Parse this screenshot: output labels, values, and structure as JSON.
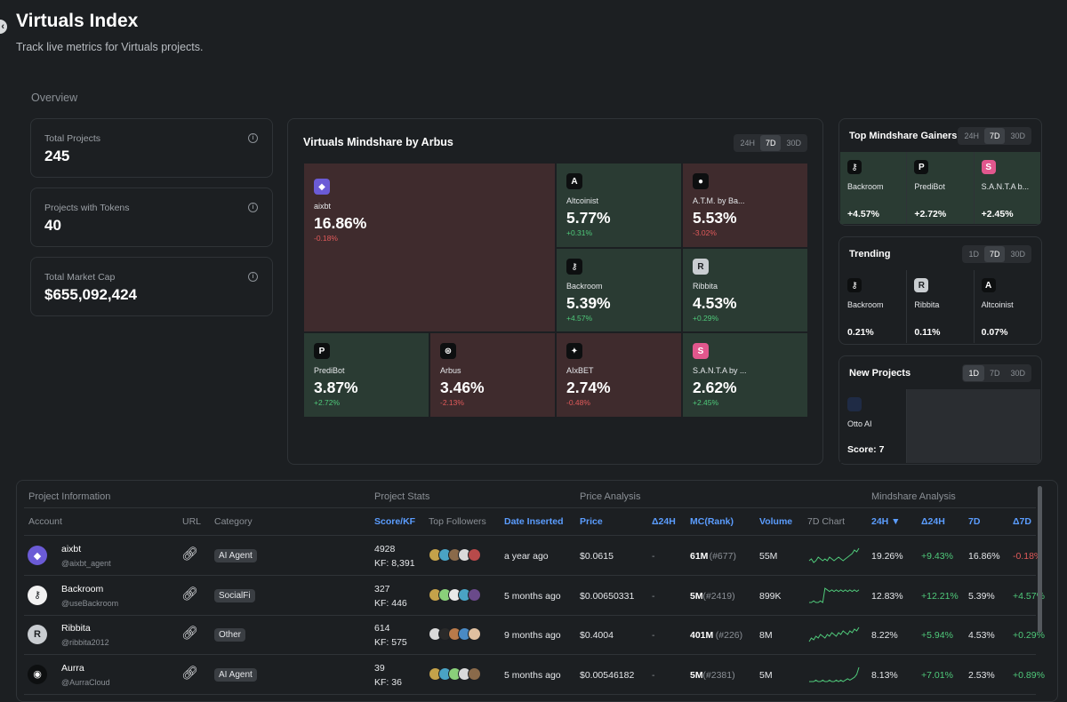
{
  "page": {
    "title": "Virtuals Index",
    "subtitle": "Track live metrics for Virtuals projects.",
    "overview_label": "Overview",
    "collapse_icon": "chevron-left-icon"
  },
  "stats": [
    {
      "label": "Total Projects",
      "value": "245"
    },
    {
      "label": "Projects with Tokens",
      "value": "40"
    },
    {
      "label": "Total Market Cap",
      "value": "$655,092,424"
    }
  ],
  "mindshare": {
    "title": "Virtuals Mindshare by Arbus",
    "periods": [
      "24H",
      "7D",
      "30D"
    ],
    "active_period": "7D",
    "tiles": [
      {
        "name": "aixbt",
        "pct": "16.86%",
        "change": "-0.18%",
        "dir": "down",
        "logo_color": "#6b5bd6",
        "logo": "◆"
      },
      {
        "name": "Altcoinist",
        "pct": "5.77%",
        "change": "+0.31%",
        "dir": "up",
        "logo_color": "#0d0f10",
        "logo": "A"
      },
      {
        "name": "A.T.M. by Ba...",
        "pct": "5.53%",
        "change": "-3.02%",
        "dir": "down",
        "logo_color": "#0d0f10",
        "logo": "●"
      },
      {
        "name": "Backroom",
        "pct": "5.39%",
        "change": "+4.57%",
        "dir": "up",
        "logo_color": "#0d0f10",
        "logo": "⚷"
      },
      {
        "name": "Ribbita",
        "pct": "4.53%",
        "change": "+0.29%",
        "dir": "up",
        "logo_color": "#c9cdd1",
        "logo": "R"
      },
      {
        "name": "PrediBot",
        "pct": "3.87%",
        "change": "+2.72%",
        "dir": "up",
        "logo_color": "#0d0f10",
        "logo": "P"
      },
      {
        "name": "Arbus",
        "pct": "3.46%",
        "change": "-2.13%",
        "dir": "down",
        "logo_color": "#0d0f10",
        "logo": "⊛"
      },
      {
        "name": "AIxBET",
        "pct": "2.74%",
        "change": "-0.48%",
        "dir": "down",
        "logo_color": "#0d0f10",
        "logo": "✦"
      },
      {
        "name": "S.A.N.T.A by ...",
        "pct": "2.62%",
        "change": "+2.45%",
        "dir": "up",
        "logo_color": "#e1578d",
        "logo": "S"
      }
    ]
  },
  "gainers": {
    "title": "Top Mindshare Gainers",
    "periods": [
      "24H",
      "7D",
      "30D"
    ],
    "active_period": "7D",
    "items": [
      {
        "name": "Backroom",
        "value": "+4.57%",
        "logo": "⚷",
        "logo_color": "#0d0f10"
      },
      {
        "name": "PrediBot",
        "value": "+2.72%",
        "logo": "P",
        "logo_color": "#0d0f10"
      },
      {
        "name": "S.A.N.T.A b...",
        "value": "+2.45%",
        "logo": "S",
        "logo_color": "#e1578d"
      }
    ]
  },
  "trending": {
    "title": "Trending",
    "periods": [
      "1D",
      "7D",
      "30D"
    ],
    "active_period": "7D",
    "items": [
      {
        "name": "Backroom",
        "value": "0.21%",
        "logo": "⚷",
        "logo_color": "#0d0f10"
      },
      {
        "name": "Ribbita",
        "value": "0.11%",
        "logo": "R",
        "logo_color": "#c9cdd1"
      },
      {
        "name": "Altcoinist",
        "value": "0.07%",
        "logo": "A",
        "logo_color": "#0d0f10"
      }
    ]
  },
  "new_projects": {
    "title": "New Projects",
    "periods": [
      "1D",
      "7D",
      "30D"
    ],
    "active_period": "1D",
    "items": [
      {
        "name": "Otto AI",
        "value": "Score: 7",
        "logo": "",
        "logo_color": "#1f2b45"
      }
    ]
  },
  "table": {
    "groups": [
      "Project Information",
      "Project Stats",
      "Price Analysis",
      "Mindshare Analysis"
    ],
    "headers": {
      "account": "Account",
      "url": "URL",
      "category": "Category",
      "score": "Score/KF",
      "followers": "Top Followers",
      "date": "Date Inserted",
      "price": "Price",
      "d24h": "Δ24H",
      "mc": "MC(Rank)",
      "volume": "Volume",
      "chart": "7D Chart",
      "m24h": "24H ▼",
      "md24h": "Δ24H",
      "m7d": "7D",
      "md7d": "Δ7D"
    },
    "rows": [
      {
        "name": "aixbt",
        "handle": "@aixbt_agent",
        "category": "AI Agent",
        "score": "4928",
        "kf": "KF: 8,391",
        "date": "a year ago",
        "price": "$0.0615",
        "d24h": "-",
        "mc": "61M",
        "rank": "(#677)",
        "volume": "55M",
        "m24h": "19.26%",
        "md24h": "+9.43%",
        "m7d": "16.86%",
        "md7d": "-0.18%",
        "md7d_dir": "down",
        "avatar": "◆",
        "avatar_color": "#6b5bd6",
        "spark": [
          5,
          6,
          4,
          5,
          7,
          6,
          5,
          6,
          5,
          7,
          6,
          5,
          6,
          7,
          6,
          5,
          6,
          7,
          8,
          9,
          11,
          10,
          12
        ]
      },
      {
        "name": "Backroom",
        "handle": "@useBackroom",
        "category": "SocialFi",
        "score": "327",
        "kf": "KF: 446",
        "date": "5 months ago",
        "price": "$0.00650331",
        "d24h": "-",
        "mc": "5M",
        "rank": "(#2419)",
        "volume": "899K",
        "m24h": "12.83%",
        "md24h": "+12.21%",
        "m7d": "5.39%",
        "md7d": "+4.57%",
        "md7d_dir": "up",
        "avatar": "⚷",
        "avatar_color": "#f2f2f2",
        "spark": [
          2,
          2,
          3,
          2,
          2,
          3,
          2,
          11,
          10,
          9,
          10,
          9,
          10,
          9,
          10,
          9,
          10,
          9,
          10,
          9,
          10,
          9,
          10
        ]
      },
      {
        "name": "Ribbita",
        "handle": "@ribbita2012",
        "category": "Other",
        "score": "614",
        "kf": "KF: 575",
        "date": "9 months ago",
        "price": "$0.4004",
        "d24h": "-",
        "mc": "401M",
        "rank": "(#226)",
        "volume": "8M",
        "m24h": "8.22%",
        "md24h": "+5.94%",
        "m7d": "4.53%",
        "md7d": "+0.29%",
        "md7d_dir": "up",
        "avatar": "R",
        "avatar_color": "#c9cdd1",
        "spark": [
          3,
          5,
          4,
          6,
          5,
          7,
          6,
          5,
          7,
          6,
          8,
          7,
          6,
          8,
          7,
          9,
          8,
          7,
          9,
          8,
          10,
          9,
          11
        ]
      },
      {
        "name": "Aurra",
        "handle": "@AurraCloud",
        "category": "AI Agent",
        "score": "39",
        "kf": "KF: 36",
        "date": "5 months ago",
        "price": "$0.00546182",
        "d24h": "-",
        "mc": "5M",
        "rank": "(#2381)",
        "volume": "5M",
        "m24h": "8.13%",
        "md24h": "+7.01%",
        "m7d": "2.53%",
        "md7d": "+0.89%",
        "md7d_dir": "up",
        "avatar": "◉",
        "avatar_color": "#0d0f10",
        "spark": [
          2,
          2,
          2,
          3,
          2,
          2,
          3,
          2,
          2,
          3,
          2,
          2,
          3,
          2,
          3,
          2,
          3,
          4,
          3,
          4,
          5,
          7,
          12
        ]
      }
    ]
  },
  "colors": {
    "bg": "#1c1f22",
    "positive": "#4fc97a",
    "negative": "#e05a5a",
    "accent": "#5b9dff",
    "tile_pos": "#2a3b33",
    "tile_neg": "#3f2b2d"
  },
  "follower_colors": [
    [
      "#c4a24a",
      "#4aa3c4",
      "#8a6a4a",
      "#d9d9d9",
      "#b84a4a"
    ],
    [
      "#c4a24a",
      "#8ad07a",
      "#e8e8e8",
      "#4aa3c4",
      "#6a4a8a"
    ],
    [
      "#d9d9d9",
      "#2a2a2a",
      "#b87a4a",
      "#4a8ac4",
      "#e0c0a0"
    ],
    [
      "#c4a24a",
      "#4aa3c4",
      "#8ad07a",
      "#d9d9d9",
      "#8a6a4a"
    ]
  ]
}
